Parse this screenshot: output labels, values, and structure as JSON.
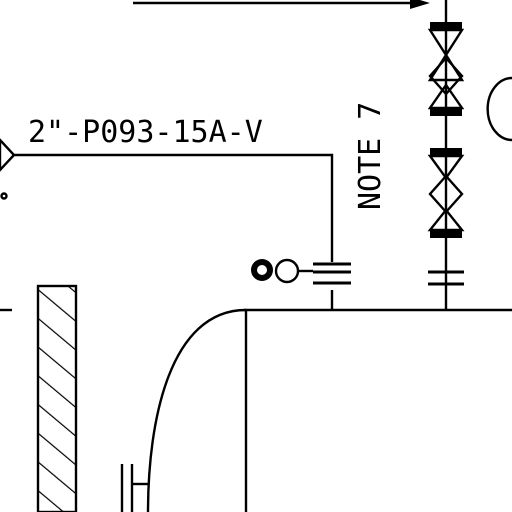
{
  "drawing": {
    "line_label": "2\"-P093-15A-V",
    "note_label": "NOTE 7",
    "colors": {
      "ink": "#000000",
      "background": "#ffffff"
    }
  }
}
